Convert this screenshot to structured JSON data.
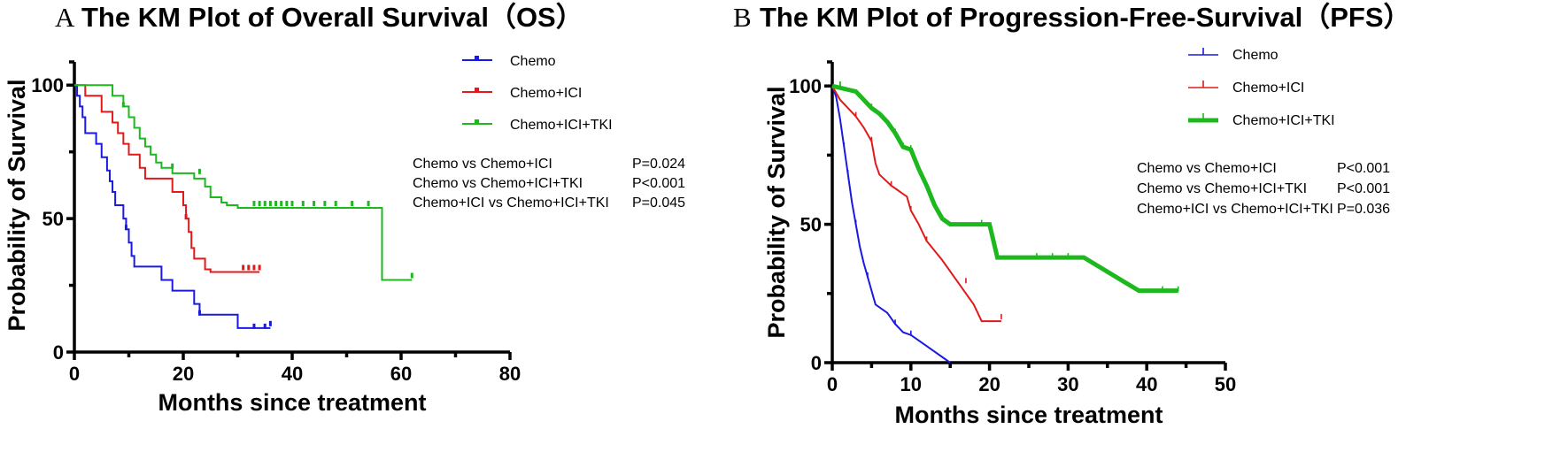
{
  "chart_data": [
    {
      "type": "line",
      "panel_letter": "A",
      "title": "The KM  Plot  of  Overall Survival（OS）",
      "xlabel": "Months since treatment",
      "ylabel": "Probability of Survival",
      "xlim": [
        0,
        80
      ],
      "ylim": [
        0,
        100
      ],
      "xticks": [
        0,
        20,
        40,
        60,
        80
      ],
      "yticks": [
        0,
        50,
        100
      ],
      "legend_position": "top-right",
      "series": [
        {
          "name": "Chemo",
          "color": "#1a1adf",
          "line_style": "thin",
          "steps": [
            [
              0,
              100
            ],
            [
              0.5,
              96
            ],
            [
              1,
              92
            ],
            [
              1.5,
              88
            ],
            [
              2,
              82
            ],
            [
              4,
              78
            ],
            [
              5,
              73
            ],
            [
              6,
              68
            ],
            [
              6.5,
              64
            ],
            [
              7,
              60
            ],
            [
              7.5,
              55
            ],
            [
              9,
              50
            ],
            [
              9.5,
              46
            ],
            [
              10,
              41
            ],
            [
              10.5,
              36
            ],
            [
              11,
              32
            ],
            [
              16,
              27
            ],
            [
              18,
              23
            ],
            [
              22,
              18
            ],
            [
              23,
              14
            ],
            [
              30,
              9
            ],
            [
              36,
              9
            ]
          ],
          "censored": [
            [
              9.5,
              46
            ],
            [
              23,
              14
            ],
            [
              33,
              9
            ],
            [
              35,
              9
            ],
            [
              36,
              10
            ]
          ]
        },
        {
          "name": "Chemo+ICI",
          "color": "#e01a1a",
          "line_style": "thin",
          "steps": [
            [
              0,
              100
            ],
            [
              2,
              96
            ],
            [
              5,
              90
            ],
            [
              7,
              86
            ],
            [
              8,
              82
            ],
            [
              9,
              78
            ],
            [
              10,
              74
            ],
            [
              12,
              69
            ],
            [
              13,
              65
            ],
            [
              18,
              60
            ],
            [
              20,
              55
            ],
            [
              20.5,
              50
            ],
            [
              21,
              45
            ],
            [
              21.5,
              39
            ],
            [
              22,
              35
            ],
            [
              24,
              31
            ],
            [
              25,
              30
            ],
            [
              34,
              30
            ]
          ],
          "censored": [
            [
              20.5,
              50
            ],
            [
              31,
              31
            ],
            [
              32,
              31
            ],
            [
              33,
              31
            ],
            [
              34,
              31
            ]
          ]
        },
        {
          "name": "Chemo+ICI+TKI",
          "color": "#1db81d",
          "line_style": "thin",
          "steps": [
            [
              0,
              100
            ],
            [
              7,
              96
            ],
            [
              9,
              92
            ],
            [
              10,
              88
            ],
            [
              11,
              84
            ],
            [
              12,
              80
            ],
            [
              13,
              77
            ],
            [
              14,
              74
            ],
            [
              15,
              71
            ],
            [
              16,
              69
            ],
            [
              18,
              67
            ],
            [
              22,
              65
            ],
            [
              24,
              62
            ],
            [
              25,
              58
            ],
            [
              27,
              56
            ],
            [
              28,
              55
            ],
            [
              30,
              54
            ],
            [
              56,
              54
            ],
            [
              56.5,
              27
            ],
            [
              62,
              27
            ]
          ],
          "censored": [
            [
              9,
              92
            ],
            [
              18,
              69
            ],
            [
              23,
              67
            ],
            [
              33,
              55
            ],
            [
              34,
              55
            ],
            [
              35,
              55
            ],
            [
              36,
              55
            ],
            [
              37,
              55
            ],
            [
              38,
              55
            ],
            [
              39,
              55
            ],
            [
              40,
              55
            ],
            [
              42,
              55
            ],
            [
              44,
              55
            ],
            [
              46,
              55
            ],
            [
              48,
              55
            ],
            [
              51,
              55
            ],
            [
              54,
              55
            ],
            [
              62,
              28
            ]
          ]
        }
      ],
      "pvalues": [
        {
          "comparison": "Chemo vs    Chemo+ICI",
          "p": "P=0.024"
        },
        {
          "comparison": "Chemo vs    Chemo+ICI+TKI",
          "p": "P<0.001"
        },
        {
          "comparison": "Chemo+ICI vs  Chemo+ICI+TKI",
          "p": "P=0.045"
        }
      ]
    },
    {
      "type": "line",
      "panel_letter": "B",
      "title": "The KM  Plot  of  Progression-Free-Survival（PFS）",
      "xlabel": "Months since treatment",
      "ylabel": "Probability of Survival",
      "xlim": [
        0,
        50
      ],
      "ylim": [
        0,
        100
      ],
      "xticks": [
        0,
        10,
        20,
        30,
        40,
        50
      ],
      "yticks": [
        0,
        50,
        100
      ],
      "legend_position": "top-right",
      "series": [
        {
          "name": "Chemo",
          "color": "#1a1adf",
          "line_style": "thin",
          "steps": [
            [
              0,
              100
            ],
            [
              0.5,
              96
            ],
            [
              1,
              88
            ],
            [
              1.5,
              78
            ],
            [
              2,
              68
            ],
            [
              2.5,
              58
            ],
            [
              3,
              50
            ],
            [
              3.5,
              42
            ],
            [
              4,
              36
            ],
            [
              4.5,
              31
            ],
            [
              5,
              26
            ],
            [
              5.5,
              21
            ],
            [
              7,
              18
            ],
            [
              8,
              14
            ],
            [
              9,
              11
            ],
            [
              10,
              10
            ],
            [
              12,
              6
            ],
            [
              15,
              0
            ]
          ],
          "censored": [
            [
              1.5,
              78
            ],
            [
              2,
              68
            ],
            [
              3,
              50
            ],
            [
              4.5,
              31
            ],
            [
              8,
              14
            ],
            [
              10,
              10
            ]
          ]
        },
        {
          "name": "Chemo+ICI",
          "color": "#e01a1a",
          "line_style": "thin",
          "steps": [
            [
              0,
              100
            ],
            [
              1,
              95
            ],
            [
              2,
              92
            ],
            [
              3,
              89
            ],
            [
              4,
              85
            ],
            [
              5,
              80
            ],
            [
              5.5,
              72
            ],
            [
              6,
              68
            ],
            [
              7.5,
              64
            ],
            [
              9.5,
              60
            ],
            [
              10,
              55
            ],
            [
              11,
              50
            ],
            [
              12,
              44
            ],
            [
              14,
              37
            ],
            [
              16,
              29
            ],
            [
              18,
              21
            ],
            [
              19,
              15
            ],
            [
              21.5,
              15
            ]
          ],
          "censored": [
            [
              1,
              100
            ],
            [
              3,
              89
            ],
            [
              5,
              80
            ],
            [
              7.5,
              64
            ],
            [
              10,
              55
            ],
            [
              12,
              44
            ],
            [
              17,
              29
            ],
            [
              21.5,
              16
            ]
          ]
        },
        {
          "name": "Chemo+ICI+TKI",
          "color": "#1db81d",
          "line_style": "thick",
          "steps": [
            [
              0,
              100
            ],
            [
              3,
              98
            ],
            [
              4,
              95
            ],
            [
              5,
              92
            ],
            [
              6,
              90
            ],
            [
              7,
              87
            ],
            [
              8,
              83
            ],
            [
              9,
              78
            ],
            [
              10,
              77
            ],
            [
              11,
              70
            ],
            [
              12,
              64
            ],
            [
              13,
              57
            ],
            [
              14,
              52
            ],
            [
              15,
              50
            ],
            [
              20,
              50
            ],
            [
              21,
              38
            ],
            [
              32,
              38
            ],
            [
              39,
              26
            ],
            [
              44,
              26
            ]
          ],
          "censored": [
            [
              1,
              100
            ],
            [
              5,
              92
            ],
            [
              8,
              83
            ],
            [
              9,
              78
            ],
            [
              10,
              77
            ],
            [
              13,
              57
            ],
            [
              19,
              50
            ],
            [
              26,
              38
            ],
            [
              28,
              38
            ],
            [
              30,
              38
            ],
            [
              42,
              26
            ],
            [
              44,
              26
            ]
          ]
        }
      ],
      "pvalues": [
        {
          "comparison": "Chemo vs    Chemo+ICI",
          "p": "P<0.001"
        },
        {
          "comparison": "Chemo vs    Chemo+ICI+TKI",
          "p": "P<0.001"
        },
        {
          "comparison": "Chemo+ICI vs  Chemo+ICI+TKI",
          "p": "P=0.036"
        }
      ]
    }
  ]
}
